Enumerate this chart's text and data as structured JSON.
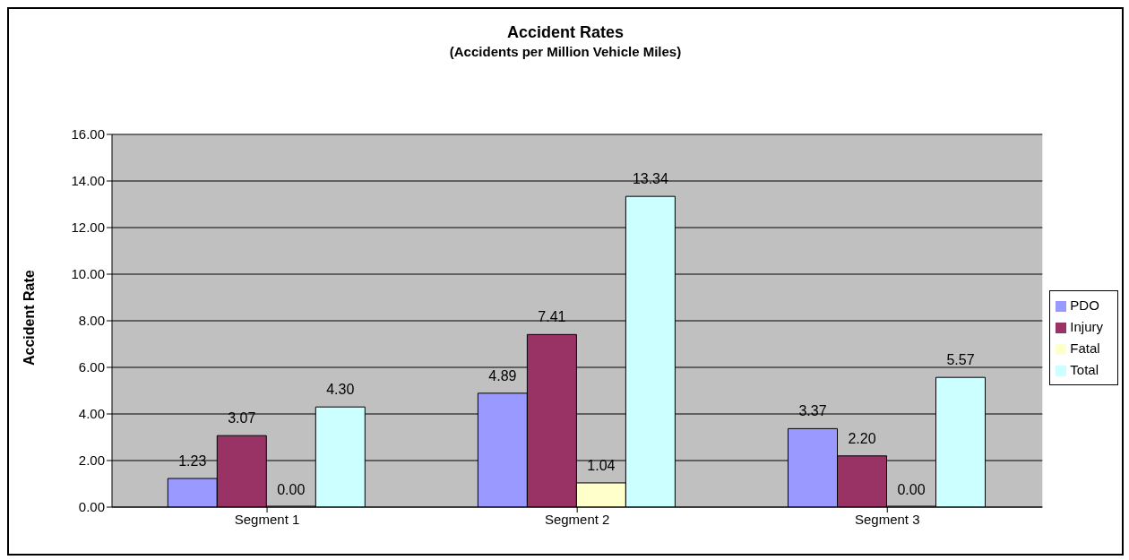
{
  "chart_data": {
    "type": "bar",
    "title": "Accident Rates",
    "subtitle": "(Accidents per Million Vehicle Miles)",
    "ylabel": "Accident Rate",
    "categories": [
      "Segment 1",
      "Segment 2",
      "Segment 3"
    ],
    "series": [
      {
        "name": "PDO",
        "color": "#9999ff",
        "values": [
          1.23,
          4.89,
          3.37
        ],
        "value_labels": [
          "1.23",
          "4.89",
          "3.37"
        ]
      },
      {
        "name": "Injury",
        "color": "#993366",
        "values": [
          3.07,
          7.41,
          2.2
        ],
        "value_labels": [
          "3.07",
          "7.41",
          "2.20"
        ]
      },
      {
        "name": "Fatal",
        "color": "#ffffcc",
        "values": [
          0,
          1.04,
          0
        ],
        "value_labels": [
          "0.00",
          "1.04",
          "0.00"
        ]
      },
      {
        "name": "Total",
        "color": "#ccffff",
        "values": [
          4.3,
          13.34,
          5.57
        ],
        "value_labels": [
          "4.30",
          "13.34",
          "5.57"
        ]
      }
    ],
    "ylim": [
      0,
      16
    ],
    "yticks": [
      {
        "value": 0,
        "label": "0.00"
      },
      {
        "value": 2,
        "label": "2.00"
      },
      {
        "value": 4,
        "label": "4.00"
      },
      {
        "value": 6,
        "label": "6.00"
      },
      {
        "value": 8,
        "label": "8.00"
      },
      {
        "value": 10,
        "label": "10.00"
      },
      {
        "value": 12,
        "label": "12.00"
      },
      {
        "value": 14,
        "label": "14.00"
      },
      {
        "value": 16,
        "label": "16.00"
      }
    ],
    "grid": "y",
    "legend": "right"
  }
}
